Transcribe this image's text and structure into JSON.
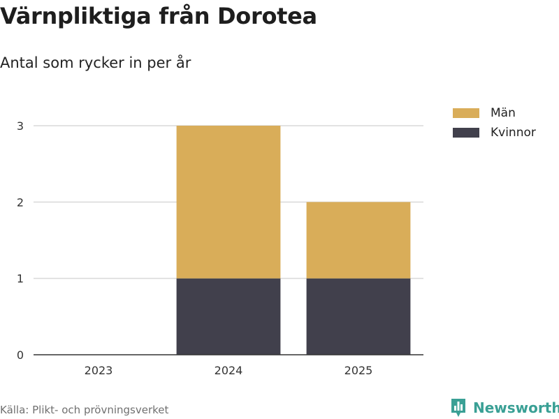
{
  "title": "Värnpliktiga från Dorotea",
  "subtitle": "Antal som rycker in per år",
  "source": "Källa: Plikt- och prövningsverket",
  "brand": "Newsworthy",
  "colors": {
    "men": "#d9ad59",
    "women": "#41404c",
    "grid": "#d9d9d9",
    "axis": "#333333",
    "brand": "#3aa095"
  },
  "chart_data": {
    "type": "bar",
    "stacked": true,
    "categories": [
      "2023",
      "2024",
      "2025"
    ],
    "series": [
      {
        "name": "Kvinnor",
        "values": [
          0,
          1,
          1
        ],
        "color": "#41404c"
      },
      {
        "name": "Män",
        "values": [
          0,
          2,
          1
        ],
        "color": "#d9ad59"
      }
    ],
    "legend": [
      "Män",
      "Kvinnor"
    ],
    "ylim": [
      0,
      3
    ],
    "yticks": [
      0,
      1,
      2,
      3
    ],
    "ytick_labels": [
      "0",
      "1",
      "2",
      "3"
    ],
    "xlabel": "",
    "ylabel": "",
    "grid": true,
    "legend_position": "top-right"
  }
}
